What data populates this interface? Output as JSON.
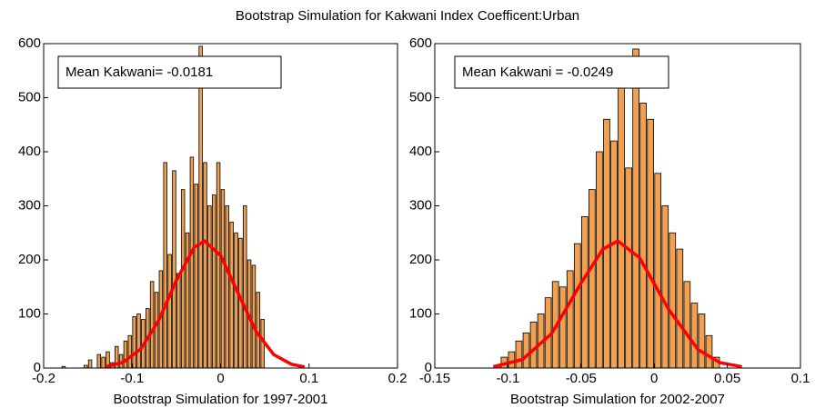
{
  "title": "Bootstrap Simulation for Kakwani Index Coefficent:Urban",
  "chart_data": [
    {
      "type": "histogram",
      "xlabel": "Bootstrap Simulation for 1997-2001",
      "annotation": "Mean Kakwani= -0.0181",
      "bins": [
        -0.18,
        -0.175,
        -0.17,
        -0.165,
        -0.16,
        -0.155,
        -0.15,
        -0.145,
        -0.14,
        -0.135,
        -0.13,
        -0.125,
        -0.12,
        -0.115,
        -0.11,
        -0.105,
        -0.1,
        -0.095,
        -0.09,
        -0.085,
        -0.08,
        -0.075,
        -0.07,
        -0.065,
        -0.06,
        -0.055,
        -0.05,
        -0.045,
        -0.04,
        -0.035,
        -0.03,
        -0.025,
        -0.02,
        -0.015,
        -0.01,
        -0.005,
        0,
        0.005,
        0.01,
        0.015,
        0.02,
        0.025,
        0.03,
        0.035,
        0.04,
        0.045,
        0.05
      ],
      "values": [
        3,
        0,
        0,
        0,
        0,
        5,
        15,
        0,
        25,
        20,
        30,
        10,
        40,
        25,
        50,
        60,
        95,
        100,
        90,
        110,
        160,
        140,
        180,
        380,
        210,
        365,
        175,
        330,
        250,
        390,
        340,
        595,
        380,
        300,
        320,
        380,
        330,
        300,
        270,
        250,
        240,
        300,
        200,
        190,
        140,
        90
      ],
      "color": "#f0a050",
      "curve": {
        "x": [
          -0.13,
          -0.11,
          -0.09,
          -0.07,
          -0.05,
          -0.03,
          -0.0181,
          0,
          0.02,
          0.04,
          0.06,
          0.08,
          0.095
        ],
        "values": [
          2.4,
          10.7,
          35.6,
          87.9,
          162,
          223,
          235,
          208,
          138,
          68,
          25,
          7,
          2
        ],
        "color": "#ff0000"
      },
      "xlim": [
        -0.2,
        0.2
      ],
      "xticks": [
        -0.2,
        -0.1,
        0,
        0.1,
        0.2
      ],
      "ylim": [
        0,
        600
      ],
      "yticks": [
        0,
        100,
        200,
        300,
        400,
        500,
        600
      ]
    },
    {
      "type": "histogram",
      "xlabel": "Bootstrap Simulation for 2002-2007",
      "annotation": "Mean Kakwani = -0.0249",
      "bins": [
        -0.11,
        -0.105,
        -0.1,
        -0.095,
        -0.09,
        -0.085,
        -0.08,
        -0.075,
        -0.07,
        -0.065,
        -0.06,
        -0.055,
        -0.05,
        -0.045,
        -0.04,
        -0.035,
        -0.03,
        -0.025,
        -0.02,
        -0.015,
        -0.01,
        -0.005,
        0,
        0.005,
        0.01,
        0.015,
        0.02,
        0.025,
        0.03,
        0.035,
        0.04,
        0.045
      ],
      "values": [
        5,
        20,
        30,
        50,
        65,
        85,
        100,
        130,
        160,
        150,
        180,
        230,
        280,
        330,
        400,
        460,
        420,
        520,
        370,
        590,
        490,
        460,
        360,
        300,
        250,
        220,
        160,
        120,
        100,
        60,
        20
      ],
      "color": "#f0a050",
      "curve": {
        "x": [
          -0.11,
          -0.09,
          -0.07,
          -0.05,
          -0.035,
          -0.0249,
          -0.01,
          0.01,
          0.03,
          0.045,
          0.06
        ],
        "values": [
          2.3,
          15.8,
          64,
          157,
          220,
          235,
          204,
          108,
          34,
          10,
          2.4
        ],
        "color": "#ff0000"
      },
      "xlim": [
        -0.15,
        0.1
      ],
      "xticks": [
        -0.15,
        -0.1,
        -0.05,
        0,
        0.05,
        0.1
      ],
      "ylim": [
        0,
        600
      ],
      "yticks": [
        0,
        100,
        200,
        300,
        400,
        500,
        600
      ]
    }
  ]
}
